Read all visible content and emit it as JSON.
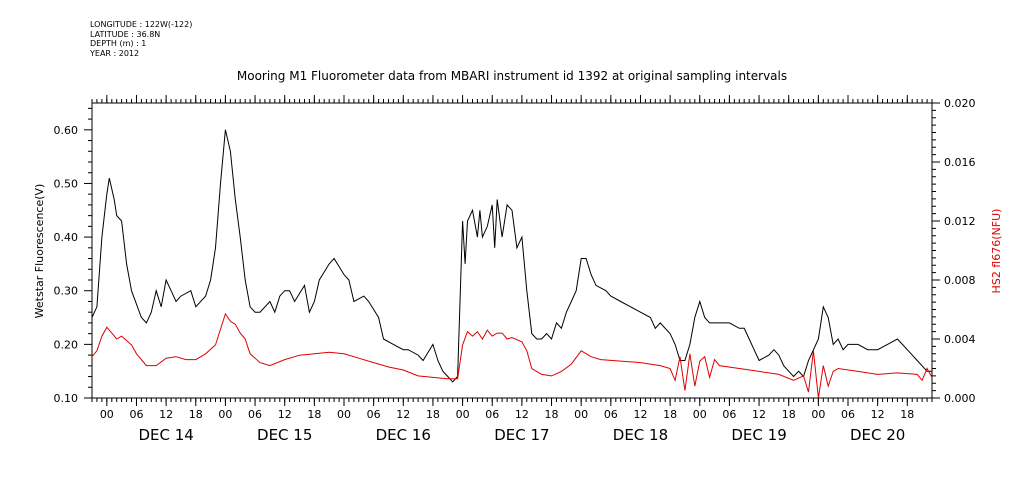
{
  "meta": [
    "LONGITUDE : 122W(-122)",
    "LATITUDE : 36.8N",
    "DEPTH (m) : 1",
    "YEAR : 2012"
  ],
  "colors": {
    "primary": "#000000",
    "secondary": "#e00000"
  },
  "chart_data": {
    "type": "line",
    "title": "Mooring M1 Fluorometer data from MBARI instrument id 1392 at original sampling intervals",
    "x_start": "2012-12-13T21:00",
    "x_end": "2012-12-20T23:00",
    "x_hour_ticks": [
      "00",
      "06",
      "12",
      "18"
    ],
    "x_day_labels": [
      "DEC 14",
      "DEC 15",
      "DEC 16",
      "DEC 17",
      "DEC 18",
      "DEC 19",
      "DEC 20"
    ],
    "y_left": {
      "label": "Wetstar Fluorescence(V)",
      "ylim": [
        0.1,
        0.65
      ],
      "ticks": [
        "0.10",
        "0.20",
        "0.30",
        "0.40",
        "0.50",
        "0.60"
      ]
    },
    "y_right": {
      "label": "HS2 fl676(NFU)",
      "ylim": [
        0.0,
        0.02
      ],
      "ticks": [
        "0.000",
        "0.004",
        "0.008",
        "0.012",
        "0.016",
        "0.020"
      ]
    },
    "series": [
      {
        "name": "Wetstar Fluorescence(V)",
        "axis": "left",
        "color": "#000000",
        "points": [
          [
            "2012-12-13T21:00",
            0.25
          ],
          [
            "2012-12-13T22:00",
            0.27
          ],
          [
            "2012-12-13T23:00",
            0.4
          ],
          [
            "2012-12-14T00:00",
            0.48
          ],
          [
            "2012-12-14T00:30",
            0.51
          ],
          [
            "2012-12-14T01:30",
            0.47
          ],
          [
            "2012-12-14T02:00",
            0.44
          ],
          [
            "2012-12-14T03:00",
            0.43
          ],
          [
            "2012-12-14T04:00",
            0.35
          ],
          [
            "2012-12-14T05:00",
            0.3
          ],
          [
            "2012-12-14T07:00",
            0.25
          ],
          [
            "2012-12-14T08:00",
            0.24
          ],
          [
            "2012-12-14T09:00",
            0.26
          ],
          [
            "2012-12-14T10:00",
            0.3
          ],
          [
            "2012-12-14T11:00",
            0.27
          ],
          [
            "2012-12-14T12:00",
            0.32
          ],
          [
            "2012-12-14T13:00",
            0.3
          ],
          [
            "2012-12-14T14:00",
            0.28
          ],
          [
            "2012-12-14T15:00",
            0.29
          ],
          [
            "2012-12-14T17:00",
            0.3
          ],
          [
            "2012-12-14T18:00",
            0.27
          ],
          [
            "2012-12-14T20:00",
            0.29
          ],
          [
            "2012-12-14T21:00",
            0.32
          ],
          [
            "2012-12-14T22:00",
            0.38
          ],
          [
            "2012-12-14T23:00",
            0.5
          ],
          [
            "2012-12-15T00:00",
            0.6
          ],
          [
            "2012-12-15T01:00",
            0.56
          ],
          [
            "2012-12-15T02:00",
            0.47
          ],
          [
            "2012-12-15T03:00",
            0.4
          ],
          [
            "2012-12-15T04:00",
            0.32
          ],
          [
            "2012-12-15T05:00",
            0.27
          ],
          [
            "2012-12-15T06:00",
            0.26
          ],
          [
            "2012-12-15T07:00",
            0.26
          ],
          [
            "2012-12-15T09:00",
            0.28
          ],
          [
            "2012-12-15T10:00",
            0.26
          ],
          [
            "2012-12-15T11:00",
            0.29
          ],
          [
            "2012-12-15T12:00",
            0.3
          ],
          [
            "2012-12-15T13:00",
            0.3
          ],
          [
            "2012-12-15T14:00",
            0.28
          ],
          [
            "2012-12-15T16:00",
            0.31
          ],
          [
            "2012-12-15T17:00",
            0.26
          ],
          [
            "2012-12-15T18:00",
            0.28
          ],
          [
            "2012-12-15T19:00",
            0.32
          ],
          [
            "2012-12-15T21:00",
            0.35
          ],
          [
            "2012-12-15T22:00",
            0.36
          ],
          [
            "2012-12-16T00:00",
            0.33
          ],
          [
            "2012-12-16T01:00",
            0.32
          ],
          [
            "2012-12-16T02:00",
            0.28
          ],
          [
            "2012-12-16T04:00",
            0.29
          ],
          [
            "2012-12-16T05:00",
            0.28
          ],
          [
            "2012-12-16T07:00",
            0.25
          ],
          [
            "2012-12-16T08:00",
            0.21
          ],
          [
            "2012-12-16T10:00",
            0.2
          ],
          [
            "2012-12-16T12:00",
            0.19
          ],
          [
            "2012-12-16T13:00",
            0.19
          ],
          [
            "2012-12-16T15:00",
            0.18
          ],
          [
            "2012-12-16T16:00",
            0.17
          ],
          [
            "2012-12-16T18:00",
            0.2
          ],
          [
            "2012-12-16T19:00",
            0.17
          ],
          [
            "2012-12-16T20:00",
            0.15
          ],
          [
            "2012-12-16T21:00",
            0.14
          ],
          [
            "2012-12-16T22:00",
            0.13
          ],
          [
            "2012-12-16T23:00",
            0.14
          ],
          [
            "2012-12-17T00:00",
            0.43
          ],
          [
            "2012-12-17T00:30",
            0.35
          ],
          [
            "2012-12-17T01:00",
            0.43
          ],
          [
            "2012-12-17T02:00",
            0.45
          ],
          [
            "2012-12-17T03:00",
            0.4
          ],
          [
            "2012-12-17T03:30",
            0.45
          ],
          [
            "2012-12-17T04:00",
            0.4
          ],
          [
            "2012-12-17T05:00",
            0.42
          ],
          [
            "2012-12-17T06:00",
            0.46
          ],
          [
            "2012-12-17T06:30",
            0.38
          ],
          [
            "2012-12-17T07:00",
            0.47
          ],
          [
            "2012-12-17T08:00",
            0.4
          ],
          [
            "2012-12-17T09:00",
            0.46
          ],
          [
            "2012-12-17T10:00",
            0.45
          ],
          [
            "2012-12-17T11:00",
            0.38
          ],
          [
            "2012-12-17T12:00",
            0.4
          ],
          [
            "2012-12-17T13:00",
            0.3
          ],
          [
            "2012-12-17T14:00",
            0.22
          ],
          [
            "2012-12-17T15:00",
            0.21
          ],
          [
            "2012-12-17T16:00",
            0.21
          ],
          [
            "2012-12-17T17:00",
            0.22
          ],
          [
            "2012-12-17T18:00",
            0.21
          ],
          [
            "2012-12-17T19:00",
            0.24
          ],
          [
            "2012-12-17T20:00",
            0.23
          ],
          [
            "2012-12-17T21:00",
            0.26
          ],
          [
            "2012-12-17T22:00",
            0.28
          ],
          [
            "2012-12-17T23:00",
            0.3
          ],
          [
            "2012-12-18T00:00",
            0.36
          ],
          [
            "2012-12-18T01:00",
            0.36
          ],
          [
            "2012-12-18T02:00",
            0.33
          ],
          [
            "2012-12-18T03:00",
            0.31
          ],
          [
            "2012-12-18T05:00",
            0.3
          ],
          [
            "2012-12-18T06:00",
            0.29
          ],
          [
            "2012-12-18T08:00",
            0.28
          ],
          [
            "2012-12-18T10:00",
            0.27
          ],
          [
            "2012-12-18T12:00",
            0.26
          ],
          [
            "2012-12-18T14:00",
            0.25
          ],
          [
            "2012-12-18T15:00",
            0.23
          ],
          [
            "2012-12-18T16:00",
            0.24
          ],
          [
            "2012-12-18T18:00",
            0.22
          ],
          [
            "2012-12-18T19:00",
            0.2
          ],
          [
            "2012-12-18T20:00",
            0.17
          ],
          [
            "2012-12-18T21:00",
            0.17
          ],
          [
            "2012-12-18T22:00",
            0.2
          ],
          [
            "2012-12-18T23:00",
            0.25
          ],
          [
            "2012-12-19T00:00",
            0.28
          ],
          [
            "2012-12-19T01:00",
            0.25
          ],
          [
            "2012-12-19T02:00",
            0.24
          ],
          [
            "2012-12-19T04:00",
            0.24
          ],
          [
            "2012-12-19T06:00",
            0.24
          ],
          [
            "2012-12-19T08:00",
            0.23
          ],
          [
            "2012-12-19T09:00",
            0.23
          ],
          [
            "2012-12-19T10:00",
            0.21
          ],
          [
            "2012-12-19T11:00",
            0.19
          ],
          [
            "2012-12-19T12:00",
            0.17
          ],
          [
            "2012-12-19T14:00",
            0.18
          ],
          [
            "2012-12-19T15:00",
            0.19
          ],
          [
            "2012-12-19T16:00",
            0.18
          ],
          [
            "2012-12-19T17:00",
            0.16
          ],
          [
            "2012-12-19T18:00",
            0.15
          ],
          [
            "2012-12-19T19:00",
            0.14
          ],
          [
            "2012-12-19T20:00",
            0.15
          ],
          [
            "2012-12-19T21:00",
            0.14
          ],
          [
            "2012-12-19T22:00",
            0.17
          ],
          [
            "2012-12-20T00:00",
            0.21
          ],
          [
            "2012-12-20T01:00",
            0.27
          ],
          [
            "2012-12-20T02:00",
            0.25
          ],
          [
            "2012-12-20T03:00",
            0.2
          ],
          [
            "2012-12-20T04:00",
            0.21
          ],
          [
            "2012-12-20T05:00",
            0.19
          ],
          [
            "2012-12-20T06:00",
            0.2
          ],
          [
            "2012-12-20T08:00",
            0.2
          ],
          [
            "2012-12-20T10:00",
            0.19
          ],
          [
            "2012-12-20T12:00",
            0.19
          ],
          [
            "2012-12-20T14:00",
            0.2
          ],
          [
            "2012-12-20T16:00",
            0.21
          ],
          [
            "2012-12-20T17:00",
            0.2
          ],
          [
            "2012-12-20T18:00",
            0.19
          ],
          [
            "2012-12-20T19:00",
            0.18
          ],
          [
            "2012-12-20T20:00",
            0.17
          ],
          [
            "2012-12-20T21:00",
            0.16
          ],
          [
            "2012-12-20T22:00",
            0.15
          ],
          [
            "2012-12-20T23:00",
            0.15
          ]
        ]
      },
      {
        "name": "HS2 fl676(NFU)",
        "axis": "right",
        "color": "#e00000",
        "points": [
          [
            "2012-12-13T21:00",
            0.0028
          ],
          [
            "2012-12-13T22:00",
            0.0032
          ],
          [
            "2012-12-13T23:00",
            0.0042
          ],
          [
            "2012-12-14T00:00",
            0.0048
          ],
          [
            "2012-12-14T01:00",
            0.0044
          ],
          [
            "2012-12-14T02:00",
            0.004
          ],
          [
            "2012-12-14T03:00",
            0.0042
          ],
          [
            "2012-12-14T05:00",
            0.0036
          ],
          [
            "2012-12-14T06:00",
            0.003
          ],
          [
            "2012-12-14T08:00",
            0.0022
          ],
          [
            "2012-12-14T10:00",
            0.0022
          ],
          [
            "2012-12-14T12:00",
            0.0027
          ],
          [
            "2012-12-14T14:00",
            0.0028
          ],
          [
            "2012-12-14T16:00",
            0.0026
          ],
          [
            "2012-12-14T18:00",
            0.0026
          ],
          [
            "2012-12-14T20:00",
            0.003
          ],
          [
            "2012-12-14T22:00",
            0.0036
          ],
          [
            "2012-12-15T00:00",
            0.0057
          ],
          [
            "2012-12-15T01:00",
            0.0052
          ],
          [
            "2012-12-15T02:00",
            0.005
          ],
          [
            "2012-12-15T03:00",
            0.0044
          ],
          [
            "2012-12-15T04:00",
            0.004
          ],
          [
            "2012-12-15T05:00",
            0.003
          ],
          [
            "2012-12-15T07:00",
            0.0024
          ],
          [
            "2012-12-15T09:00",
            0.0022
          ],
          [
            "2012-12-15T12:00",
            0.0026
          ],
          [
            "2012-12-15T15:00",
            0.0029
          ],
          [
            "2012-12-15T18:00",
            0.003
          ],
          [
            "2012-12-15T21:00",
            0.0031
          ],
          [
            "2012-12-16T00:00",
            0.003
          ],
          [
            "2012-12-16T03:00",
            0.0027
          ],
          [
            "2012-12-16T06:00",
            0.0024
          ],
          [
            "2012-12-16T09:00",
            0.0021
          ],
          [
            "2012-12-16T12:00",
            0.0019
          ],
          [
            "2012-12-16T15:00",
            0.0015
          ],
          [
            "2012-12-16T18:00",
            0.0014
          ],
          [
            "2012-12-16T21:00",
            0.0013
          ],
          [
            "2012-12-16T23:00",
            0.0013
          ],
          [
            "2012-12-17T00:00",
            0.0036
          ],
          [
            "2012-12-17T01:00",
            0.0045
          ],
          [
            "2012-12-17T02:00",
            0.0042
          ],
          [
            "2012-12-17T03:00",
            0.0045
          ],
          [
            "2012-12-17T04:00",
            0.004
          ],
          [
            "2012-12-17T05:00",
            0.0046
          ],
          [
            "2012-12-17T06:00",
            0.0042
          ],
          [
            "2012-12-17T07:00",
            0.0044
          ],
          [
            "2012-12-17T08:00",
            0.0044
          ],
          [
            "2012-12-17T09:00",
            0.004
          ],
          [
            "2012-12-17T10:00",
            0.0041
          ],
          [
            "2012-12-17T12:00",
            0.0038
          ],
          [
            "2012-12-17T13:00",
            0.0032
          ],
          [
            "2012-12-17T14:00",
            0.002
          ],
          [
            "2012-12-17T16:00",
            0.0016
          ],
          [
            "2012-12-17T18:00",
            0.0015
          ],
          [
            "2012-12-17T20:00",
            0.0018
          ],
          [
            "2012-12-17T22:00",
            0.0023
          ],
          [
            "2012-12-18T00:00",
            0.0032
          ],
          [
            "2012-12-18T02:00",
            0.0028
          ],
          [
            "2012-12-18T04:00",
            0.0026
          ],
          [
            "2012-12-18T08:00",
            0.0025
          ],
          [
            "2012-12-18T12:00",
            0.0024
          ],
          [
            "2012-12-18T16:00",
            0.0022
          ],
          [
            "2012-12-18T18:00",
            0.002
          ],
          [
            "2012-12-18T19:00",
            0.0012
          ],
          [
            "2012-12-18T20:00",
            0.0028
          ],
          [
            "2012-12-18T21:00",
            0.0005
          ],
          [
            "2012-12-18T22:00",
            0.003
          ],
          [
            "2012-12-18T23:00",
            0.0008
          ],
          [
            "2012-12-19T00:00",
            0.0025
          ],
          [
            "2012-12-19T01:00",
            0.0028
          ],
          [
            "2012-12-19T02:00",
            0.0014
          ],
          [
            "2012-12-19T03:00",
            0.0026
          ],
          [
            "2012-12-19T04:00",
            0.0022
          ],
          [
            "2012-12-19T08:00",
            0.002
          ],
          [
            "2012-12-19T12:00",
            0.0018
          ],
          [
            "2012-12-19T16:00",
            0.0016
          ],
          [
            "2012-12-19T19:00",
            0.0012
          ],
          [
            "2012-12-19T21:00",
            0.0015
          ],
          [
            "2012-12-19T22:00",
            0.0004
          ],
          [
            "2012-12-19T23:00",
            0.0032
          ],
          [
            "2012-12-20T00:00",
            0.0
          ],
          [
            "2012-12-20T01:00",
            0.0022
          ],
          [
            "2012-12-20T02:00",
            0.0008
          ],
          [
            "2012-12-20T03:00",
            0.0018
          ],
          [
            "2012-12-20T04:00",
            0.002
          ],
          [
            "2012-12-20T08:00",
            0.0018
          ],
          [
            "2012-12-20T12:00",
            0.0016
          ],
          [
            "2012-12-20T16:00",
            0.0017
          ],
          [
            "2012-12-20T20:00",
            0.0016
          ],
          [
            "2012-12-20T21:00",
            0.0012
          ],
          [
            "2012-12-20T22:00",
            0.002
          ],
          [
            "2012-12-20T23:00",
            0.0014
          ]
        ]
      }
    ]
  }
}
